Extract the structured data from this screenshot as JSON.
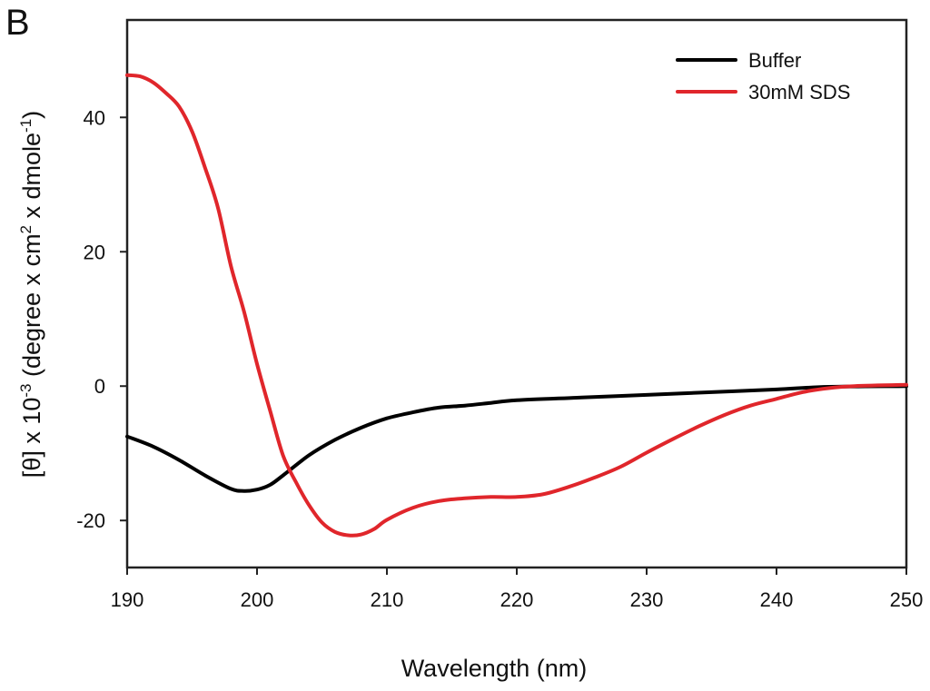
{
  "panel_label": "B",
  "chart_data": {
    "type": "line",
    "title": "",
    "xlabel": "Wavelength (nm)",
    "ylabel": "[θ] x 10^-3 (degree x cm^2 x dmole^-1)",
    "ylabel_parts": {
      "base1": "[θ] x 10",
      "sup1": "-3",
      "base2": " (degree x cm",
      "sup2": "2",
      "base3": " x dmole",
      "sup3": "-1",
      "base4": ")"
    },
    "xlim": [
      190,
      250
    ],
    "ylim": [
      -27,
      54.5
    ],
    "xticks": [
      190,
      200,
      210,
      220,
      230,
      240,
      250
    ],
    "xtick_labels": [
      "190",
      "200",
      "210",
      "220",
      "230",
      "240",
      "250"
    ],
    "yticks": [
      -20,
      0,
      20,
      40
    ],
    "ytick_labels": [
      "-20",
      "0",
      "20",
      "40"
    ],
    "grid": false,
    "legend_position": "top-right",
    "series": [
      {
        "name": "Buffer",
        "color": "#000000",
        "x": [
          190,
          192,
          194,
          196,
          198,
          199,
          200,
          201,
          202,
          204,
          206,
          208,
          210,
          212,
          214,
          216,
          218,
          220,
          225,
          230,
          235,
          240,
          244,
          250
        ],
        "y": [
          -7.5,
          -9.0,
          -11.0,
          -13.3,
          -15.3,
          -15.6,
          -15.4,
          -14.7,
          -13.3,
          -10.3,
          -8.0,
          -6.2,
          -4.8,
          -3.9,
          -3.2,
          -2.9,
          -2.5,
          -2.1,
          -1.7,
          -1.3,
          -0.9,
          -0.5,
          -0.1,
          0.0
        ]
      },
      {
        "name": "30mM SDS",
        "color": "#e0262b",
        "x": [
          190,
          191,
          192,
          193,
          194,
          195,
          196,
          197,
          198,
          199,
          200,
          201,
          202,
          203,
          204,
          205,
          206,
          207,
          208,
          209,
          210,
          212,
          214,
          216,
          218,
          220,
          222,
          224,
          226,
          228,
          230,
          232,
          234,
          236,
          238,
          240,
          242,
          244,
          246,
          250
        ],
        "y": [
          46.3,
          46.1,
          45.2,
          43.6,
          41.6,
          37.9,
          32.5,
          26.5,
          17.8,
          11.1,
          3.3,
          -3.6,
          -10.3,
          -14.3,
          -17.7,
          -20.3,
          -21.7,
          -22.2,
          -22.1,
          -21.3,
          -19.9,
          -18.1,
          -17.1,
          -16.7,
          -16.5,
          -16.5,
          -16.1,
          -15.0,
          -13.6,
          -12.0,
          -9.9,
          -7.9,
          -6.0,
          -4.3,
          -2.9,
          -1.9,
          -0.9,
          -0.3,
          0.0,
          0.2
        ]
      }
    ]
  }
}
